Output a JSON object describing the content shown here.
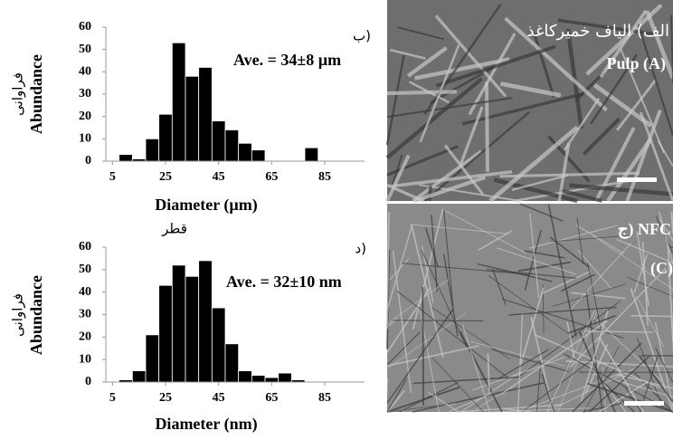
{
  "chart_data": [
    {
      "type": "histogram",
      "corner_label": "ب)",
      "annotation": "Ave. = 34±8 µm",
      "xlabel": "Diameter (µm)",
      "xlabel_fa": "قطر",
      "ylabel": "Abundance",
      "ylabel_fa": "فراوانی",
      "bins": [
        7.5,
        12.5,
        17.5,
        22.5,
        27.5,
        32.5,
        37.5,
        42.5,
        47.5,
        52.5,
        57.5,
        62.5,
        67.5,
        72.5,
        77.5,
        82.5
      ],
      "values": [
        3,
        1,
        10,
        21,
        53,
        38,
        42,
        18,
        14,
        8,
        5,
        0,
        0,
        0,
        6
      ],
      "color": "#000000",
      "xlim": [
        2.5,
        100
      ],
      "ylim": [
        0,
        60
      ],
      "xticks": [
        5,
        25,
        45,
        65,
        85
      ],
      "yticks": [
        0,
        10,
        20,
        30,
        40,
        50,
        60
      ]
    },
    {
      "type": "histogram",
      "corner_label": "د)",
      "annotation": "Ave. = 32±10 nm",
      "xlabel": "Diameter (nm)",
      "ylabel": "Abundance",
      "ylabel_fa": "فراوانی",
      "bins": [
        7.5,
        12.5,
        17.5,
        22.5,
        27.5,
        32.5,
        37.5,
        42.5,
        47.5,
        52.5,
        57.5,
        62.5,
        67.5,
        72.5,
        77.5
      ],
      "values": [
        1,
        5,
        21,
        43,
        52,
        47,
        54,
        33,
        17,
        5,
        3,
        2,
        4,
        1
      ],
      "color": "#000000",
      "xlim": [
        2.5,
        100
      ],
      "ylim": [
        0,
        60
      ],
      "xticks": [
        5,
        25,
        45,
        65,
        85
      ],
      "yticks": [
        0,
        10,
        20,
        30,
        40,
        50,
        60
      ]
    }
  ],
  "images": [
    {
      "caption_fa": "الف) الیاف خمیرکاغذ",
      "caption": "Pulp (A)"
    },
    {
      "caption_fa": "ج) NFC",
      "caption": "(C)"
    }
  ]
}
